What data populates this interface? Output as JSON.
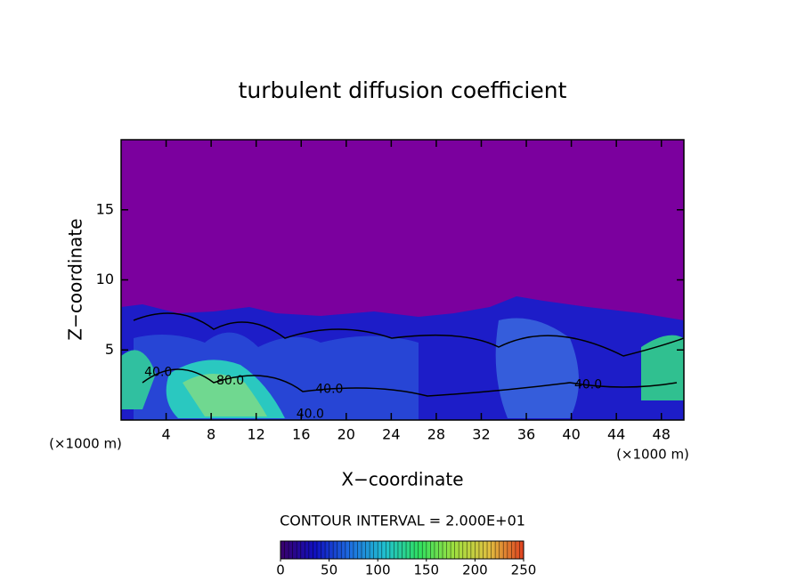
{
  "chart_data": {
    "type": "heatmap",
    "title": "turbulent diffusion coefficient",
    "xlabel": "X−coordinate",
    "ylabel": "Z−coordinate",
    "x_unit": "(×1000 m)",
    "xlim": [
      0,
      50
    ],
    "ylim": [
      0,
      20
    ],
    "xticks": [
      4,
      8,
      12,
      16,
      20,
      24,
      28,
      32,
      36,
      40,
      44,
      48
    ],
    "yticks": [
      5,
      10,
      15
    ],
    "contour_labels": [
      {
        "text": "40.0",
        "x": 3.3,
        "y": 3.4
      },
      {
        "text": "80.0",
        "x": 9.7,
        "y": 2.8
      },
      {
        "text": "40.0",
        "x": 18.5,
        "y": 2.2
      },
      {
        "text": "40.0",
        "x": 41.5,
        "y": 2.5
      },
      {
        "text": "40.0",
        "x": 16.8,
        "y": 0.4
      }
    ],
    "contour_interval": "CONTOUR INTERVAL = 2.000E+01",
    "colorbar": {
      "lim": [
        0,
        250
      ],
      "ticks": [
        0,
        50,
        100,
        150,
        200,
        250
      ],
      "colors": [
        "#3a006a",
        "#1010c0",
        "#1e6ee0",
        "#20c0d0",
        "#30e060",
        "#a0e040",
        "#e0c040",
        "#e04020"
      ]
    }
  }
}
